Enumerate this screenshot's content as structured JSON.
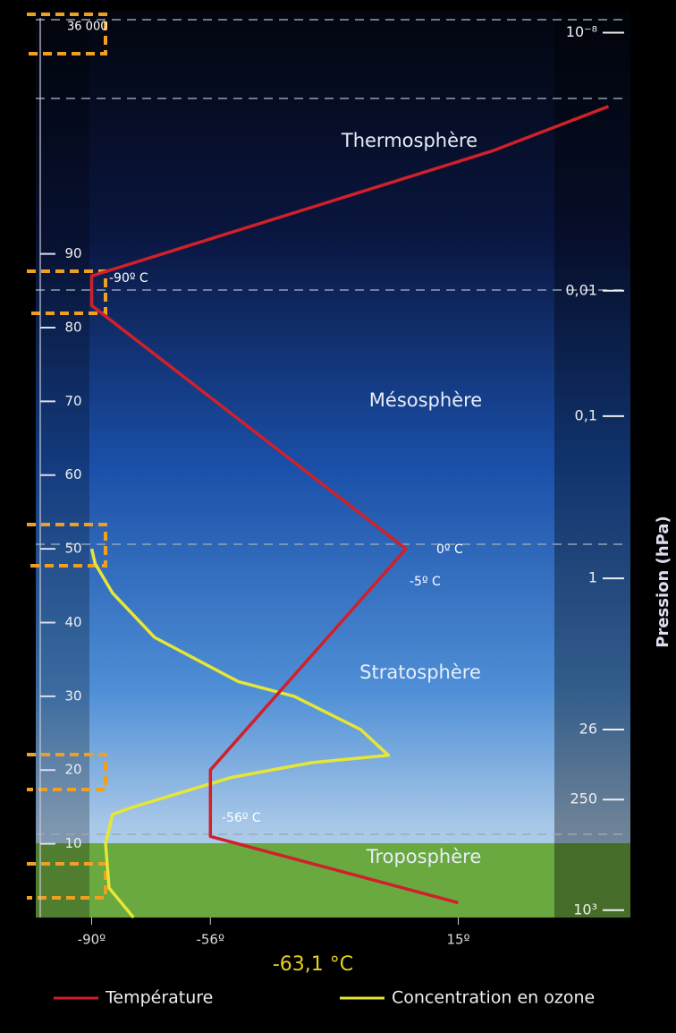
{
  "chart_data": {
    "type": "line",
    "series": [
      {
        "name": "Température",
        "color": "#d0202a",
        "x": [
          15,
          -56,
          -56,
          0,
          -90,
          -90,
          25,
          58
        ],
        "values": [
          2,
          11,
          20,
          50,
          83,
          87,
          104,
          110
        ]
      },
      {
        "name": "Concentration en ozone",
        "color": "#e6e635",
        "x": [
          -78,
          -85,
          -86,
          -84,
          -78,
          -50,
          -27,
          -5,
          -13,
          -32,
          -48,
          -72,
          -84,
          -89,
          -90
        ],
        "values": [
          0,
          4,
          10,
          14,
          15,
          19,
          21,
          22,
          25.5,
          30,
          32,
          38,
          44,
          48,
          50
        ]
      }
    ],
    "xlim": [
      -106,
      63
    ],
    "xticks": [
      {
        "value": -90,
        "label": "-90º"
      },
      {
        "value": -56,
        "label": "-56º"
      },
      {
        "value": 15,
        "label": "15º"
      }
    ],
    "ylim": [
      0,
      122
    ],
    "yticks": [
      10,
      20,
      30,
      40,
      50,
      60,
      70,
      80,
      90
    ],
    "y2_label": "Pression (hPa)",
    "pressure_ticks": [
      {
        "label": "10⁻⁸",
        "altitude": 120
      },
      {
        "label": "0,01",
        "altitude": 85
      },
      {
        "label": "0,1",
        "altitude": 68
      },
      {
        "label": "1",
        "altitude": 46
      },
      {
        "label": "26",
        "altitude": 25.5
      },
      {
        "label": "250",
        "altitude": 16
      },
      {
        "label": "10³",
        "altitude": 1
      }
    ],
    "annotations": [
      "-90º C",
      "0º C",
      "-5º C",
      "-56º C",
      "-63,1 °C",
      "36 000",
      "Thermosphère",
      "Mésosphère",
      "Stratosphère",
      "Troposphère"
    ]
  }
}
